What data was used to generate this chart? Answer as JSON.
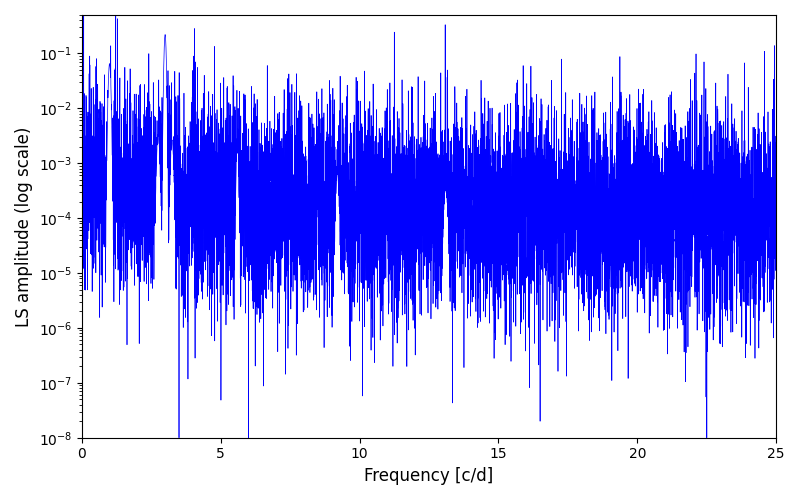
{
  "xlabel": "Frequency [c/d]",
  "ylabel": "LS amplitude (log scale)",
  "line_color": "#0000ff",
  "xlim": [
    0,
    25
  ],
  "ylim": [
    1e-08,
    0.5
  ],
  "xticks": [
    0,
    5,
    10,
    15,
    20,
    25
  ],
  "yticks_labels": [
    "10^-8",
    "10^-7",
    "10^-6",
    "10^-5",
    "10^-4",
    "10^-3",
    "10^-2",
    "10^-1"
  ],
  "background_color": "#ffffff",
  "freq_max": 25.0,
  "n_points": 8000,
  "seed": 12345,
  "peak1_freq": 1.0,
  "peak1_amp": 0.065,
  "peak2_freq": 3.0,
  "peak2_amp": 0.22,
  "peak3_freq": 5.6,
  "peak3_amp": 0.002,
  "peak4_freq": 9.2,
  "peak4_amp": 0.00065,
  "figsize": [
    8.0,
    5.0
  ],
  "dpi": 100
}
